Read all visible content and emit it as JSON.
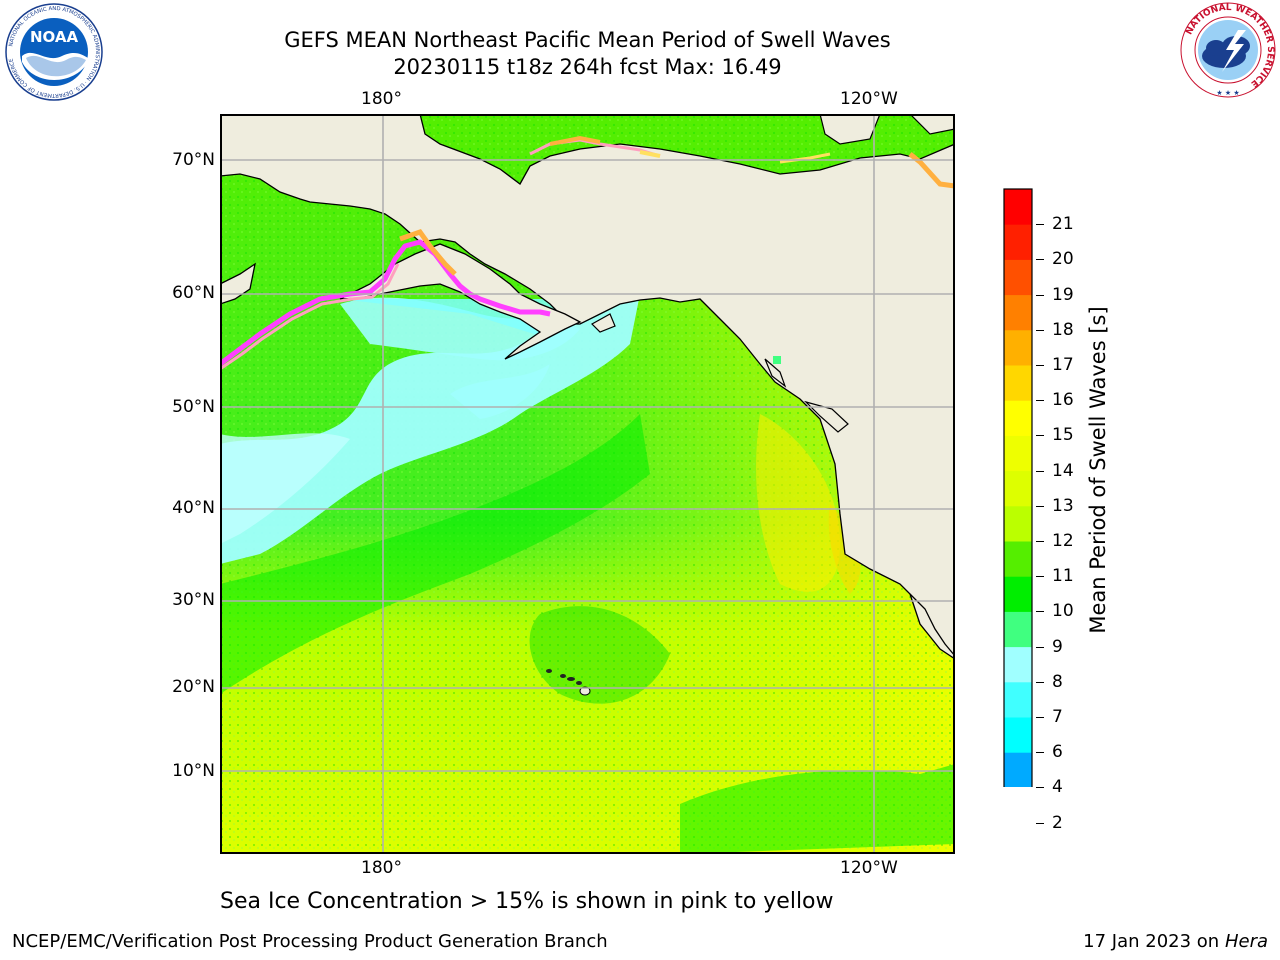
{
  "header": {
    "title_line1": "GEFS MEAN Northeast Pacific Mean Period of Swell Waves",
    "title_line2": "20230115 t18z 264h fcst   Max: 16.49"
  },
  "logos": {
    "left": {
      "name": "NOAA",
      "ring_text": "NATIONAL OCEANIC AND ATMOSPHERIC ADMINISTRATION · U.S. DEPARTMENT OF COMMERCE",
      "inner_text": "NOAA"
    },
    "right": {
      "name": "National Weather Service",
      "ring_text": "NATIONAL WEATHER SERVICE"
    }
  },
  "map": {
    "region": "Northeast Pacific",
    "x_ticks_top": [
      "180°",
      "120°W"
    ],
    "x_ticks_bottom": [
      "180°",
      "120°W"
    ],
    "y_ticks": [
      "70°N",
      "60°N",
      "50°N",
      "40°N",
      "30°N",
      "20°N",
      "10°N"
    ],
    "land_color": "#efedde",
    "grid_color": "#b0b0b0",
    "sea_ice_colors": [
      "#ff40ff",
      "#ff9fbf",
      "#ffb040",
      "#ffe060"
    ]
  },
  "colorbar": {
    "title": "Mean Period of Swell Waves [s]",
    "levels": [
      "2",
      "4",
      "6",
      "7",
      "8",
      "9",
      "10",
      "11",
      "12",
      "13",
      "14",
      "15",
      "16",
      "17",
      "18",
      "19",
      "20",
      "21"
    ],
    "colors": [
      "#0055ff",
      "#00aaff",
      "#00ffff",
      "#40ffff",
      "#a0ffff",
      "#40ff80",
      "#00ee00",
      "#55ee00",
      "#bbff00",
      "#ddff00",
      "#eeff00",
      "#ffff00",
      "#ffd700",
      "#ffb000",
      "#ff8000",
      "#ff5000",
      "#ff2000",
      "#ff0000"
    ],
    "extend_color": "#0000ff"
  },
  "note": "Sea Ice Concentration > 15% is shown in pink to yellow",
  "footer": {
    "left": "NCEP/EMC/Verification Post Processing Product Generation Branch",
    "date": "17 Jan 2023 on ",
    "host": "Hera"
  }
}
